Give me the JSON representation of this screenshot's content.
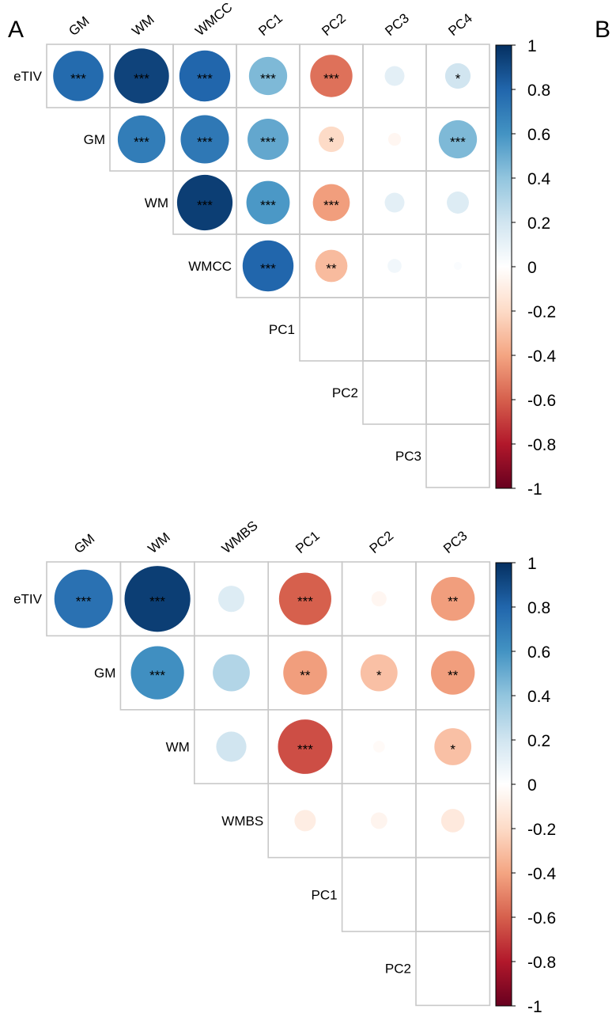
{
  "figure": {
    "panel_labels": [
      "A",
      "B"
    ]
  },
  "chart_data": [
    {
      "type": "heatmap",
      "panel": "A",
      "columns": [
        "GM",
        "WM",
        "WMCC",
        "PC1",
        "PC2",
        "PC3",
        "PC4"
      ],
      "rows": [
        "eTIV",
        "GM",
        "WM",
        "WMCC",
        "PC1",
        "PC2",
        "PC3"
      ],
      "cells": [
        {
          "r": 0,
          "c": 0,
          "v": 0.78,
          "sig": "***"
        },
        {
          "r": 0,
          "c": 1,
          "v": 0.93,
          "sig": "***"
        },
        {
          "r": 0,
          "c": 2,
          "v": 0.8,
          "sig": "***"
        },
        {
          "r": 0,
          "c": 3,
          "v": 0.45,
          "sig": "***"
        },
        {
          "r": 0,
          "c": 4,
          "v": -0.55,
          "sig": "***"
        },
        {
          "r": 0,
          "c": 5,
          "v": 0.12,
          "sig": ""
        },
        {
          "r": 0,
          "c": 6,
          "v": 0.2,
          "sig": "*"
        },
        {
          "r": 1,
          "c": 1,
          "v": 0.7,
          "sig": "***"
        },
        {
          "r": 1,
          "c": 2,
          "v": 0.72,
          "sig": "***"
        },
        {
          "r": 1,
          "c": 3,
          "v": 0.52,
          "sig": "***"
        },
        {
          "r": 1,
          "c": 4,
          "v": -0.2,
          "sig": "*"
        },
        {
          "r": 1,
          "c": 5,
          "v": -0.05,
          "sig": ""
        },
        {
          "r": 1,
          "c": 6,
          "v": 0.45,
          "sig": "***"
        },
        {
          "r": 2,
          "c": 2,
          "v": 0.95,
          "sig": "***"
        },
        {
          "r": 2,
          "c": 3,
          "v": 0.58,
          "sig": "***"
        },
        {
          "r": 2,
          "c": 4,
          "v": -0.42,
          "sig": "***"
        },
        {
          "r": 2,
          "c": 5,
          "v": 0.12,
          "sig": ""
        },
        {
          "r": 2,
          "c": 6,
          "v": 0.15,
          "sig": ""
        },
        {
          "r": 3,
          "c": 3,
          "v": 0.8,
          "sig": "***"
        },
        {
          "r": 3,
          "c": 4,
          "v": -0.32,
          "sig": "**"
        },
        {
          "r": 3,
          "c": 5,
          "v": 0.06,
          "sig": ""
        },
        {
          "r": 3,
          "c": 6,
          "v": 0.02,
          "sig": ""
        }
      ],
      "legend": {
        "ticks": [
          "1",
          "0.8",
          "0.6",
          "0.4",
          "0.2",
          "0",
          "-0.2",
          "-0.4",
          "-0.6",
          "-0.8",
          "-1"
        ],
        "range": [
          -1,
          1
        ]
      },
      "title": "",
      "xlabel": "",
      "ylabel": "",
      "grid": true,
      "legend_position": "right"
    },
    {
      "type": "heatmap",
      "panel": "B",
      "columns": [
        "GM",
        "WM",
        "WMBS",
        "PC1",
        "PC2",
        "PC3"
      ],
      "rows": [
        "eTIV",
        "GM",
        "WM",
        "WMBS",
        "PC1",
        "PC2"
      ],
      "cells": [
        {
          "r": 0,
          "c": 0,
          "v": 0.75,
          "sig": "***"
        },
        {
          "r": 0,
          "c": 1,
          "v": 0.95,
          "sig": "***"
        },
        {
          "r": 0,
          "c": 2,
          "v": 0.15,
          "sig": ""
        },
        {
          "r": 0,
          "c": 3,
          "v": -0.6,
          "sig": "***"
        },
        {
          "r": 0,
          "c": 4,
          "v": -0.05,
          "sig": ""
        },
        {
          "r": 0,
          "c": 5,
          "v": -0.42,
          "sig": "**"
        },
        {
          "r": 1,
          "c": 1,
          "v": 0.62,
          "sig": "***"
        },
        {
          "r": 1,
          "c": 2,
          "v": 0.3,
          "sig": ""
        },
        {
          "r": 1,
          "c": 3,
          "v": -0.42,
          "sig": "**"
        },
        {
          "r": 1,
          "c": 4,
          "v": -0.3,
          "sig": "*"
        },
        {
          "r": 1,
          "c": 5,
          "v": -0.42,
          "sig": "**"
        },
        {
          "r": 2,
          "c": 2,
          "v": 0.2,
          "sig": ""
        },
        {
          "r": 2,
          "c": 3,
          "v": -0.65,
          "sig": "***"
        },
        {
          "r": 2,
          "c": 4,
          "v": -0.03,
          "sig": ""
        },
        {
          "r": 2,
          "c": 5,
          "v": -0.3,
          "sig": "*"
        },
        {
          "r": 3,
          "c": 3,
          "v": -0.1,
          "sig": ""
        },
        {
          "r": 3,
          "c": 4,
          "v": -0.06,
          "sig": ""
        },
        {
          "r": 3,
          "c": 5,
          "v": -0.12,
          "sig": ""
        }
      ],
      "legend": {
        "ticks": [
          "1",
          "0.8",
          "0.6",
          "0.4",
          "0.2",
          "0",
          "-0.2",
          "-0.4",
          "-0.6",
          "-0.8",
          "-1"
        ],
        "range": [
          -1,
          1
        ]
      },
      "title": "",
      "xlabel": "",
      "ylabel": "",
      "grid": true,
      "legend_position": "right"
    }
  ]
}
